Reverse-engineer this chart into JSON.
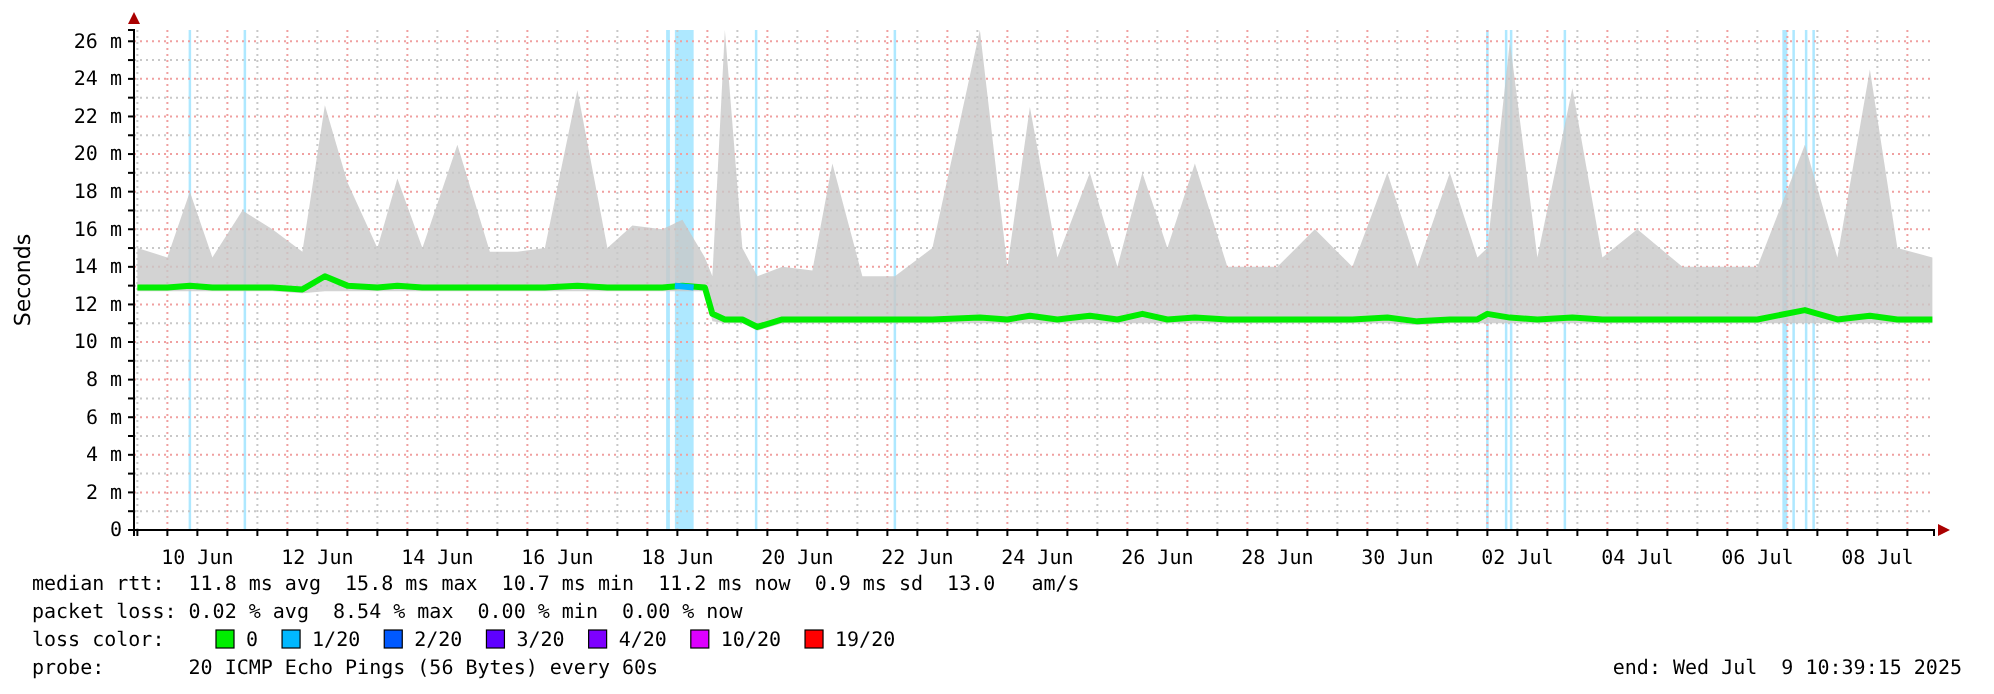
{
  "chart_data": {
    "type": "line",
    "ylabel": "Seconds",
    "legend_title": "loss color:",
    "legend": "bottom",
    "grid": true,
    "line_style": "solid",
    "marker": "none",
    "xlim": [
      "2025-06-09T10:39",
      "2025-07-09T10:39"
    ],
    "xticks": [
      {
        "value": "2025-06-09T12:00",
        "label": null
      },
      {
        "value": "2025-06-10T00:00",
        "label": null
      },
      {
        "value": "2025-06-10T12:00",
        "label": "10 Jun"
      },
      {
        "value": "2025-06-11T00:00",
        "label": null
      },
      {
        "value": "2025-06-11T12:00",
        "label": null
      },
      {
        "value": "2025-06-12T00:00",
        "label": null
      },
      {
        "value": "2025-06-12T12:00",
        "label": "12 Jun"
      },
      {
        "value": "2025-06-13T00:00",
        "label": null
      },
      {
        "value": "2025-06-13T12:00",
        "label": null
      },
      {
        "value": "2025-06-14T00:00",
        "label": null
      },
      {
        "value": "2025-06-14T12:00",
        "label": "14 Jun"
      },
      {
        "value": "2025-06-15T00:00",
        "label": null
      },
      {
        "value": "2025-06-15T12:00",
        "label": null
      },
      {
        "value": "2025-06-16T00:00",
        "label": null
      },
      {
        "value": "2025-06-16T12:00",
        "label": "16 Jun"
      },
      {
        "value": "2025-06-17T00:00",
        "label": null
      },
      {
        "value": "2025-06-17T12:00",
        "label": null
      },
      {
        "value": "2025-06-18T00:00",
        "label": null
      },
      {
        "value": "2025-06-18T12:00",
        "label": "18 Jun"
      },
      {
        "value": "2025-06-19T00:00",
        "label": null
      },
      {
        "value": "2025-06-19T12:00",
        "label": null
      },
      {
        "value": "2025-06-20T00:00",
        "label": null
      },
      {
        "value": "2025-06-20T12:00",
        "label": "20 Jun"
      },
      {
        "value": "2025-06-21T00:00",
        "label": null
      },
      {
        "value": "2025-06-21T12:00",
        "label": null
      },
      {
        "value": "2025-06-22T00:00",
        "label": null
      },
      {
        "value": "2025-06-22T12:00",
        "label": "22 Jun"
      },
      {
        "value": "2025-06-23T00:00",
        "label": null
      },
      {
        "value": "2025-06-23T12:00",
        "label": null
      },
      {
        "value": "2025-06-24T00:00",
        "label": null
      },
      {
        "value": "2025-06-24T12:00",
        "label": "24 Jun"
      },
      {
        "value": "2025-06-25T00:00",
        "label": null
      },
      {
        "value": "2025-06-25T12:00",
        "label": null
      },
      {
        "value": "2025-06-26T00:00",
        "label": null
      },
      {
        "value": "2025-06-26T12:00",
        "label": "26 Jun"
      },
      {
        "value": "2025-06-27T00:00",
        "label": null
      },
      {
        "value": "2025-06-27T12:00",
        "label": null
      },
      {
        "value": "2025-06-28T00:00",
        "label": null
      },
      {
        "value": "2025-06-28T12:00",
        "label": "28 Jun"
      },
      {
        "value": "2025-06-29T00:00",
        "label": null
      },
      {
        "value": "2025-06-29T12:00",
        "label": null
      },
      {
        "value": "2025-06-30T00:00",
        "label": null
      },
      {
        "value": "2025-06-30T12:00",
        "label": "30 Jun"
      },
      {
        "value": "2025-07-01T00:00",
        "label": null
      },
      {
        "value": "2025-07-01T12:00",
        "label": null
      },
      {
        "value": "2025-07-02T00:00",
        "label": null
      },
      {
        "value": "2025-07-02T12:00",
        "label": "02 Jul"
      },
      {
        "value": "2025-07-03T00:00",
        "label": null
      },
      {
        "value": "2025-07-03T12:00",
        "label": null
      },
      {
        "value": "2025-07-04T00:00",
        "label": null
      },
      {
        "value": "2025-07-04T12:00",
        "label": "04 Jul"
      },
      {
        "value": "2025-07-05T00:00",
        "label": null
      },
      {
        "value": "2025-07-05T12:00",
        "label": null
      },
      {
        "value": "2025-07-06T00:00",
        "label": null
      },
      {
        "value": "2025-07-06T12:00",
        "label": "06 Jul"
      },
      {
        "value": "2025-07-07T00:00",
        "label": null
      },
      {
        "value": "2025-07-07T12:00",
        "label": null
      },
      {
        "value": "2025-07-08T00:00",
        "label": null
      },
      {
        "value": "2025-07-08T12:00",
        "label": "08 Jul"
      },
      {
        "value": "2025-07-09T00:00",
        "label": null
      }
    ],
    "ylim": [
      0,
      26.6
    ],
    "yticks": [
      0,
      {
        "value": 1,
        "label": null
      },
      {
        "value": 2,
        "label": "2 m"
      },
      {
        "value": 3,
        "label": null
      },
      {
        "value": 4,
        "label": "4 m"
      },
      {
        "value": 5,
        "label": null
      },
      {
        "value": 6,
        "label": "6 m"
      },
      {
        "value": 7,
        "label": null
      },
      {
        "value": 8,
        "label": "8 m"
      },
      {
        "value": 9,
        "label": null
      },
      {
        "value": 10,
        "label": "10 m"
      },
      {
        "value": 11,
        "label": null
      },
      {
        "value": 12,
        "label": "12 m"
      },
      {
        "value": 13,
        "label": null
      },
      {
        "value": 14,
        "label": "14 m"
      },
      {
        "value": 15,
        "label": null
      },
      {
        "value": 16,
        "label": "16 m"
      },
      {
        "value": 17,
        "label": null
      },
      {
        "value": 18,
        "label": "18 m"
      },
      {
        "value": 19,
        "label": null
      },
      {
        "value": 20,
        "label": "20 m"
      },
      {
        "value": 21,
        "label": null
      },
      {
        "value": 22,
        "label": "22 m"
      },
      {
        "value": 23,
        "label": null
      },
      {
        "value": 24,
        "label": "24 m"
      },
      {
        "value": 25,
        "label": null
      },
      {
        "value": 26,
        "label": "26 m"
      }
    ],
    "bands": [
      {
        "axis": "x",
        "from": "2025-06-10T08:30",
        "to": "2025-06-10T09:30",
        "color": "#aee8ff"
      },
      {
        "axis": "x",
        "from": "2025-06-11T06:30",
        "to": "2025-06-11T07:30",
        "color": "#aee8ff"
      },
      {
        "axis": "x",
        "from": "2025-06-18T07:30",
        "to": "2025-06-18T09:00",
        "color": "#aee8ff"
      },
      {
        "axis": "x",
        "from": "2025-06-18T11:00",
        "to": "2025-06-18T18:30",
        "color": "#aee8ff"
      },
      {
        "axis": "x",
        "from": "2025-06-19T19:00",
        "to": "2025-06-19T20:00",
        "color": "#aee8ff"
      },
      {
        "axis": "x",
        "from": "2025-06-22T02:30",
        "to": "2025-06-22T03:30",
        "color": "#aee8ff"
      },
      {
        "axis": "x",
        "from": "2025-07-01T23:30",
        "to": "2025-07-02T00:30",
        "color": "#aee8ff"
      },
      {
        "axis": "x",
        "from": "2025-07-02T07:00",
        "to": "2025-07-02T08:00",
        "color": "#aee8ff"
      },
      {
        "axis": "x",
        "from": "2025-07-02T09:00",
        "to": "2025-07-02T10:00",
        "color": "#aee8ff"
      },
      {
        "axis": "x",
        "from": "2025-07-03T06:30",
        "to": "2025-07-03T07:30",
        "color": "#aee8ff"
      },
      {
        "axis": "x",
        "from": "2025-07-06T22:00",
        "to": "2025-07-07T00:00",
        "color": "#aee8ff"
      },
      {
        "axis": "x",
        "from": "2025-07-07T02:00",
        "to": "2025-07-07T03:00",
        "color": "#aee8ff"
      },
      {
        "axis": "x",
        "from": "2025-07-07T07:00",
        "to": "2025-07-07T08:00",
        "color": "#aee8ff"
      },
      {
        "axis": "x",
        "from": "2025-07-07T10:00",
        "to": "2025-07-07T11:00",
        "color": "#aee8ff"
      }
    ],
    "series": [
      {
        "name": "0",
        "color": "#00ee00",
        "x": [
          "2025-06-09T12:00",
          "2025-06-10T00:00",
          "2025-06-10T09:00",
          "2025-06-10T18:00",
          "2025-06-11T06:00",
          "2025-06-11T18:00",
          "2025-06-12T06:00",
          "2025-06-12T15:00",
          "2025-06-13T00:00",
          "2025-06-13T12:00",
          "2025-06-13T20:00",
          "2025-06-14T06:00",
          "2025-06-14T20:00",
          "2025-06-15T09:00",
          "2025-06-15T20:00",
          "2025-06-16T07:00",
          "2025-06-16T20:00",
          "2025-06-17T08:00",
          "2025-06-17T18:00",
          "2025-06-18T06:00",
          "2025-06-18T14:00",
          "2025-06-18T23:00",
          "2025-06-19T02:00",
          "2025-06-19T07:00",
          "2025-06-19T14:00",
          "2025-06-19T20:00",
          "2025-06-20T06:00",
          "2025-06-20T18:00",
          "2025-06-21T02:00",
          "2025-06-21T14:00",
          "2025-06-22T03:00",
          "2025-06-22T18:00",
          "2025-06-23T13:00",
          "2025-06-24T00:00",
          "2025-06-24T09:00",
          "2025-06-24T20:00",
          "2025-06-25T09:00",
          "2025-06-25T20:00",
          "2025-06-26T06:00",
          "2025-06-26T16:00",
          "2025-06-27T03:00",
          "2025-06-27T16:00",
          "2025-06-28T12:00",
          "2025-06-29T03:00",
          "2025-06-29T18:00",
          "2025-06-30T08:00",
          "2025-06-30T20:00",
          "2025-07-01T09:00",
          "2025-07-01T20:00",
          "2025-07-02T00:00",
          "2025-07-02T09:00",
          "2025-07-02T20:00",
          "2025-07-03T10:00",
          "2025-07-03T22:00",
          "2025-07-04T12:00",
          "2025-07-05T06:00",
          "2025-07-05T20:00",
          "2025-07-06T12:00",
          "2025-07-07T07:00",
          "2025-07-07T20:00",
          "2025-07-08T09:00",
          "2025-07-08T20:00",
          "2025-07-09T10:00"
        ],
        "values": [
          12.9,
          12.9,
          13,
          12.9,
          12.9,
          12.9,
          12.8,
          13.5,
          13,
          12.9,
          13,
          12.9,
          12.9,
          12.9,
          12.9,
          12.9,
          13,
          12.9,
          12.9,
          12.9,
          13,
          12.9,
          11.5,
          11.2,
          11.2,
          10.8,
          11.2,
          11.2,
          11.2,
          11.2,
          11.2,
          11.2,
          11.3,
          11.2,
          11.4,
          11.2,
          11.4,
          11.2,
          11.5,
          11.2,
          11.3,
          11.2,
          11.2,
          11.2,
          11.2,
          11.3,
          11.1,
          11.2,
          11.2,
          11.5,
          11.3,
          11.2,
          11.3,
          11.2,
          11.2,
          11.2,
          11.2,
          11.2,
          11.7,
          11.2,
          11.4,
          11.2,
          11.2
        ],
        "lower": [
          12.7,
          12.7,
          12.7,
          12.7,
          12.7,
          12.7,
          12.6,
          12.7,
          12.7,
          12.7,
          12.7,
          12.7,
          12.7,
          12.7,
          12.7,
          12.7,
          12.7,
          12.7,
          12.7,
          12.7,
          12.7,
          12.7,
          11.1,
          11,
          11,
          10.6,
          11,
          11,
          11,
          11,
          11,
          11,
          11,
          11,
          11,
          11,
          11,
          11,
          11,
          11,
          11,
          11,
          11,
          11,
          11,
          11,
          10.9,
          11,
          11,
          11,
          11,
          11,
          11,
          11,
          11,
          11,
          11,
          11,
          11,
          11,
          11,
          11,
          11
        ],
        "upper": [
          15,
          14.5,
          18,
          14.5,
          17,
          16,
          14.8,
          22.6,
          18.5,
          15,
          18.7,
          15,
          20.5,
          14.8,
          14.8,
          15,
          23.4,
          15,
          16.2,
          16,
          16.5,
          14.5,
          13.5,
          26.6,
          15,
          13.5,
          14,
          13.8,
          19.5,
          13.5,
          13.5,
          15,
          26.6,
          14,
          22.5,
          14.5,
          19,
          14,
          19,
          15,
          19.5,
          14,
          14,
          16,
          14,
          19,
          14,
          19,
          14.5,
          15,
          26,
          14.5,
          23.5,
          14.5,
          16,
          14,
          14,
          14,
          20.5,
          14.5,
          24.5,
          15,
          14.5
        ]
      },
      {
        "name": "1/20",
        "color": "#00b8ff",
        "x": [
          "2025-06-18T11:00",
          "2025-06-18T18:30"
        ],
        "values": [
          13,
          12.9
        ]
      },
      {
        "name": "2/20",
        "color": "#0059ff"
      },
      {
        "name": "3/20",
        "color": "#5e00ff"
      },
      {
        "name": "4/20",
        "color": "#7e00ff"
      },
      {
        "name": "10/20",
        "color": "#dd00ff"
      },
      {
        "name": "19/20",
        "color": "#ff0000"
      }
    ],
    "annotations": [
      "median rtt:  11.8 ms avg  15.8 ms max  10.7 ms min  11.2 ms now  0.9 ms sd  13.0   am/s",
      "packet loss: 0.02 % avg  8.54 % max  0.00 % min  0.00 % now",
      "probe:       20 ICMP Echo Pings (56 Bytes) every 60s",
      "end: Wed Jul  9 10:39:15 2025"
    ]
  }
}
